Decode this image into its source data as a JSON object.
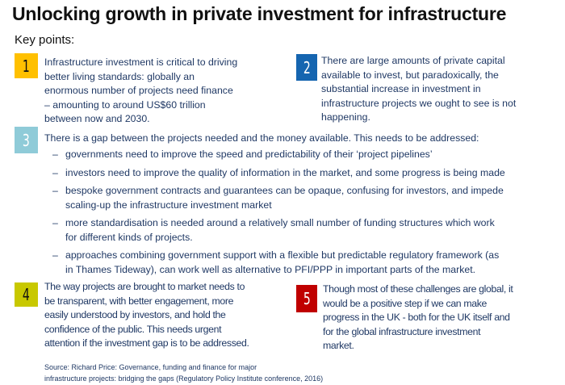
{
  "title": "Unlocking growth in private investment for infrastructure",
  "key_points_label": "Key points:",
  "points": [
    {
      "number": "1",
      "color": "#ffc000",
      "lines": [
        "Infrastructure investment is critical to driving",
        "better living standards: globally an",
        "enormous number of projects need finance",
        "– amounting to around US$60 trillion",
        "between now and 2030."
      ]
    },
    {
      "number": "2",
      "color": "#1565b0",
      "lines": [
        "There are large amounts of private capital",
        "available to invest, but paradoxically, the",
        "substantial increase in investment in",
        "infrastructure projects we ought to see is not",
        "happening."
      ]
    },
    {
      "number": "3",
      "color": "#8fcbd8",
      "lines": [
        "There is a gap between the projects needed and the money available. This needs to be addressed:"
      ],
      "bullets": [
        [
          "governments need to improve the speed and predictability of their ‘project pipelines’"
        ],
        [
          "investors need to improve the quality of information in the market, and some progress is being made"
        ],
        [
          "bespoke government contracts and guarantees can be opaque, confusing for investors, and impede",
          "scaling-up the infrastructure investment market"
        ],
        [
          "more standardisation is needed around a relatively small number of funding structures which work",
          "for different kinds of projects."
        ],
        [
          "approaches combining government support with a flexible but predictable regulatory framework (as",
          "in Thames Tideway), can work well as alternative to PFI/PPP in important parts of the market."
        ]
      ]
    },
    {
      "number": "4",
      "color": "#c8c800",
      "lines": [
        "The way projects are brought to market needs to",
        "be transparent, with better engagement, more",
        "easily understood by investors, and hold the",
        "confidence of the public.  This needs urgent",
        "attention if the investment gap is to be addressed."
      ]
    },
    {
      "number": "5",
      "color": "#c00000",
      "lines": [
        "Though most of these challenges are global, it",
        "would be a positive step if we can make",
        "progress in the UK - both for the UK itself and",
        "for the global infrastructure investment",
        "market."
      ]
    }
  ],
  "bullet_dash": "–",
  "source": [
    "Source: Richard Price: Governance, funding and finance for major",
    "infrastructure projects: bridging the gaps (Regulatory Policy Institute conference, 2016)"
  ]
}
